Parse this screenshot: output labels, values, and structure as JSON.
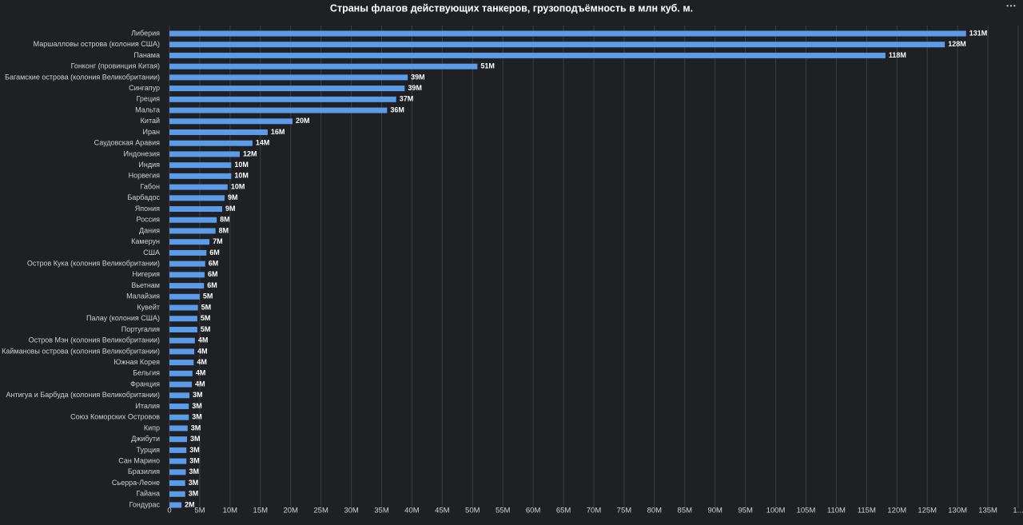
{
  "chart_data": {
    "type": "hbar",
    "title": "Страны флагов действующих танкеров, грузоподъёмность в млн куб. м.",
    "categories": [
      "Либерия",
      "Маршалловы острова (колония США)",
      "Панама",
      "Гонконг (провинция Китая)",
      "Багамские острова (колония Великобритании)",
      "Сингапур",
      "Греция",
      "Мальта",
      "Китай",
      "Иран",
      "Саудовская Аравия",
      "Индонезия",
      "Индия",
      "Норвегия",
      "Габон",
      "Барбадос",
      "Япония",
      "Россия",
      "Дания",
      "Камерун",
      "США",
      "Остров Кука (колония Великобритании)",
      "Нигерия",
      "Вьетнам",
      "Малайзия",
      "Кувейт",
      "Палау (колония США)",
      "Португалия",
      "Остров Мэн (колония Великобритании)",
      "Каймановы острова (колония Великобритании)",
      "Южная Корея",
      "Бельгия",
      "Франция",
      "Антигуа и Барбуда (колония Великобритании)",
      "Италия",
      "Союз Коморских Островов",
      "Кипр",
      "Джибути",
      "Турция",
      "Сан Марино",
      "Бразилия",
      "Сьерра-Леоне",
      "Гайана",
      "Гондурас"
    ],
    "values": [
      131.4,
      127.9,
      118.1,
      50.8,
      39.3,
      38.8,
      37.4,
      35.9,
      20.3,
      16.2,
      13.7,
      11.6,
      10.2,
      10.2,
      9.6,
      9.1,
      8.7,
      7.8,
      7.6,
      6.6,
      6.1,
      5.9,
      5.8,
      5.7,
      5.0,
      4.7,
      4.6,
      4.6,
      4.2,
      4.1,
      4.0,
      3.8,
      3.7,
      3.3,
      3.2,
      3.2,
      3.0,
      2.9,
      2.8,
      2.8,
      2.7,
      2.6,
      2.6,
      2.0
    ],
    "value_labels": [
      "131M",
      "128M",
      "118M",
      "51M",
      "39M",
      "39M",
      "37M",
      "36M",
      "20M",
      "16M",
      "14M",
      "12M",
      "10M",
      "10M",
      "10M",
      "9M",
      "9M",
      "8M",
      "8M",
      "7M",
      "6M",
      "6M",
      "6M",
      "6M",
      "5M",
      "5M",
      "5M",
      "5M",
      "4M",
      "4M",
      "4M",
      "4M",
      "4M",
      "3M",
      "3M",
      "3M",
      "3M",
      "3M",
      "3M",
      "3M",
      "3M",
      "3M",
      "3M",
      "2M"
    ],
    "color": "#5b9be8",
    "xlim": [
      0,
      140
    ],
    "xticks": [
      0,
      {
        "value": 5,
        "label": "5M"
      },
      {
        "value": 10,
        "label": "10M"
      },
      {
        "value": 15,
        "label": "15M"
      },
      {
        "value": 20,
        "label": "20M"
      },
      {
        "value": 25,
        "label": "25M"
      },
      {
        "value": 30,
        "label": "30M"
      },
      {
        "value": 35,
        "label": "35M"
      },
      {
        "value": 40,
        "label": "40M"
      },
      {
        "value": 45,
        "label": "45M"
      },
      {
        "value": 50,
        "label": "50M"
      },
      {
        "value": 55,
        "label": "55M"
      },
      {
        "value": 60,
        "label": "60M"
      },
      {
        "value": 65,
        "label": "65M"
      },
      {
        "value": 70,
        "label": "70M"
      },
      {
        "value": 75,
        "label": "75M"
      },
      {
        "value": 80,
        "label": "80M"
      },
      {
        "value": 85,
        "label": "85M"
      },
      {
        "value": 90,
        "label": "90M"
      },
      {
        "value": 95,
        "label": "95M"
      },
      {
        "value": 100,
        "label": "100M"
      },
      {
        "value": 105,
        "label": "105M"
      },
      {
        "value": 110,
        "label": "110M"
      },
      {
        "value": 115,
        "label": "115M"
      },
      {
        "value": 120,
        "label": "120M"
      },
      {
        "value": 125,
        "label": "125M"
      },
      {
        "value": 130,
        "label": "130M"
      },
      {
        "value": 135,
        "label": "135M"
      },
      {
        "value": 140,
        "label": "1..."
      }
    ],
    "grid": true
  }
}
